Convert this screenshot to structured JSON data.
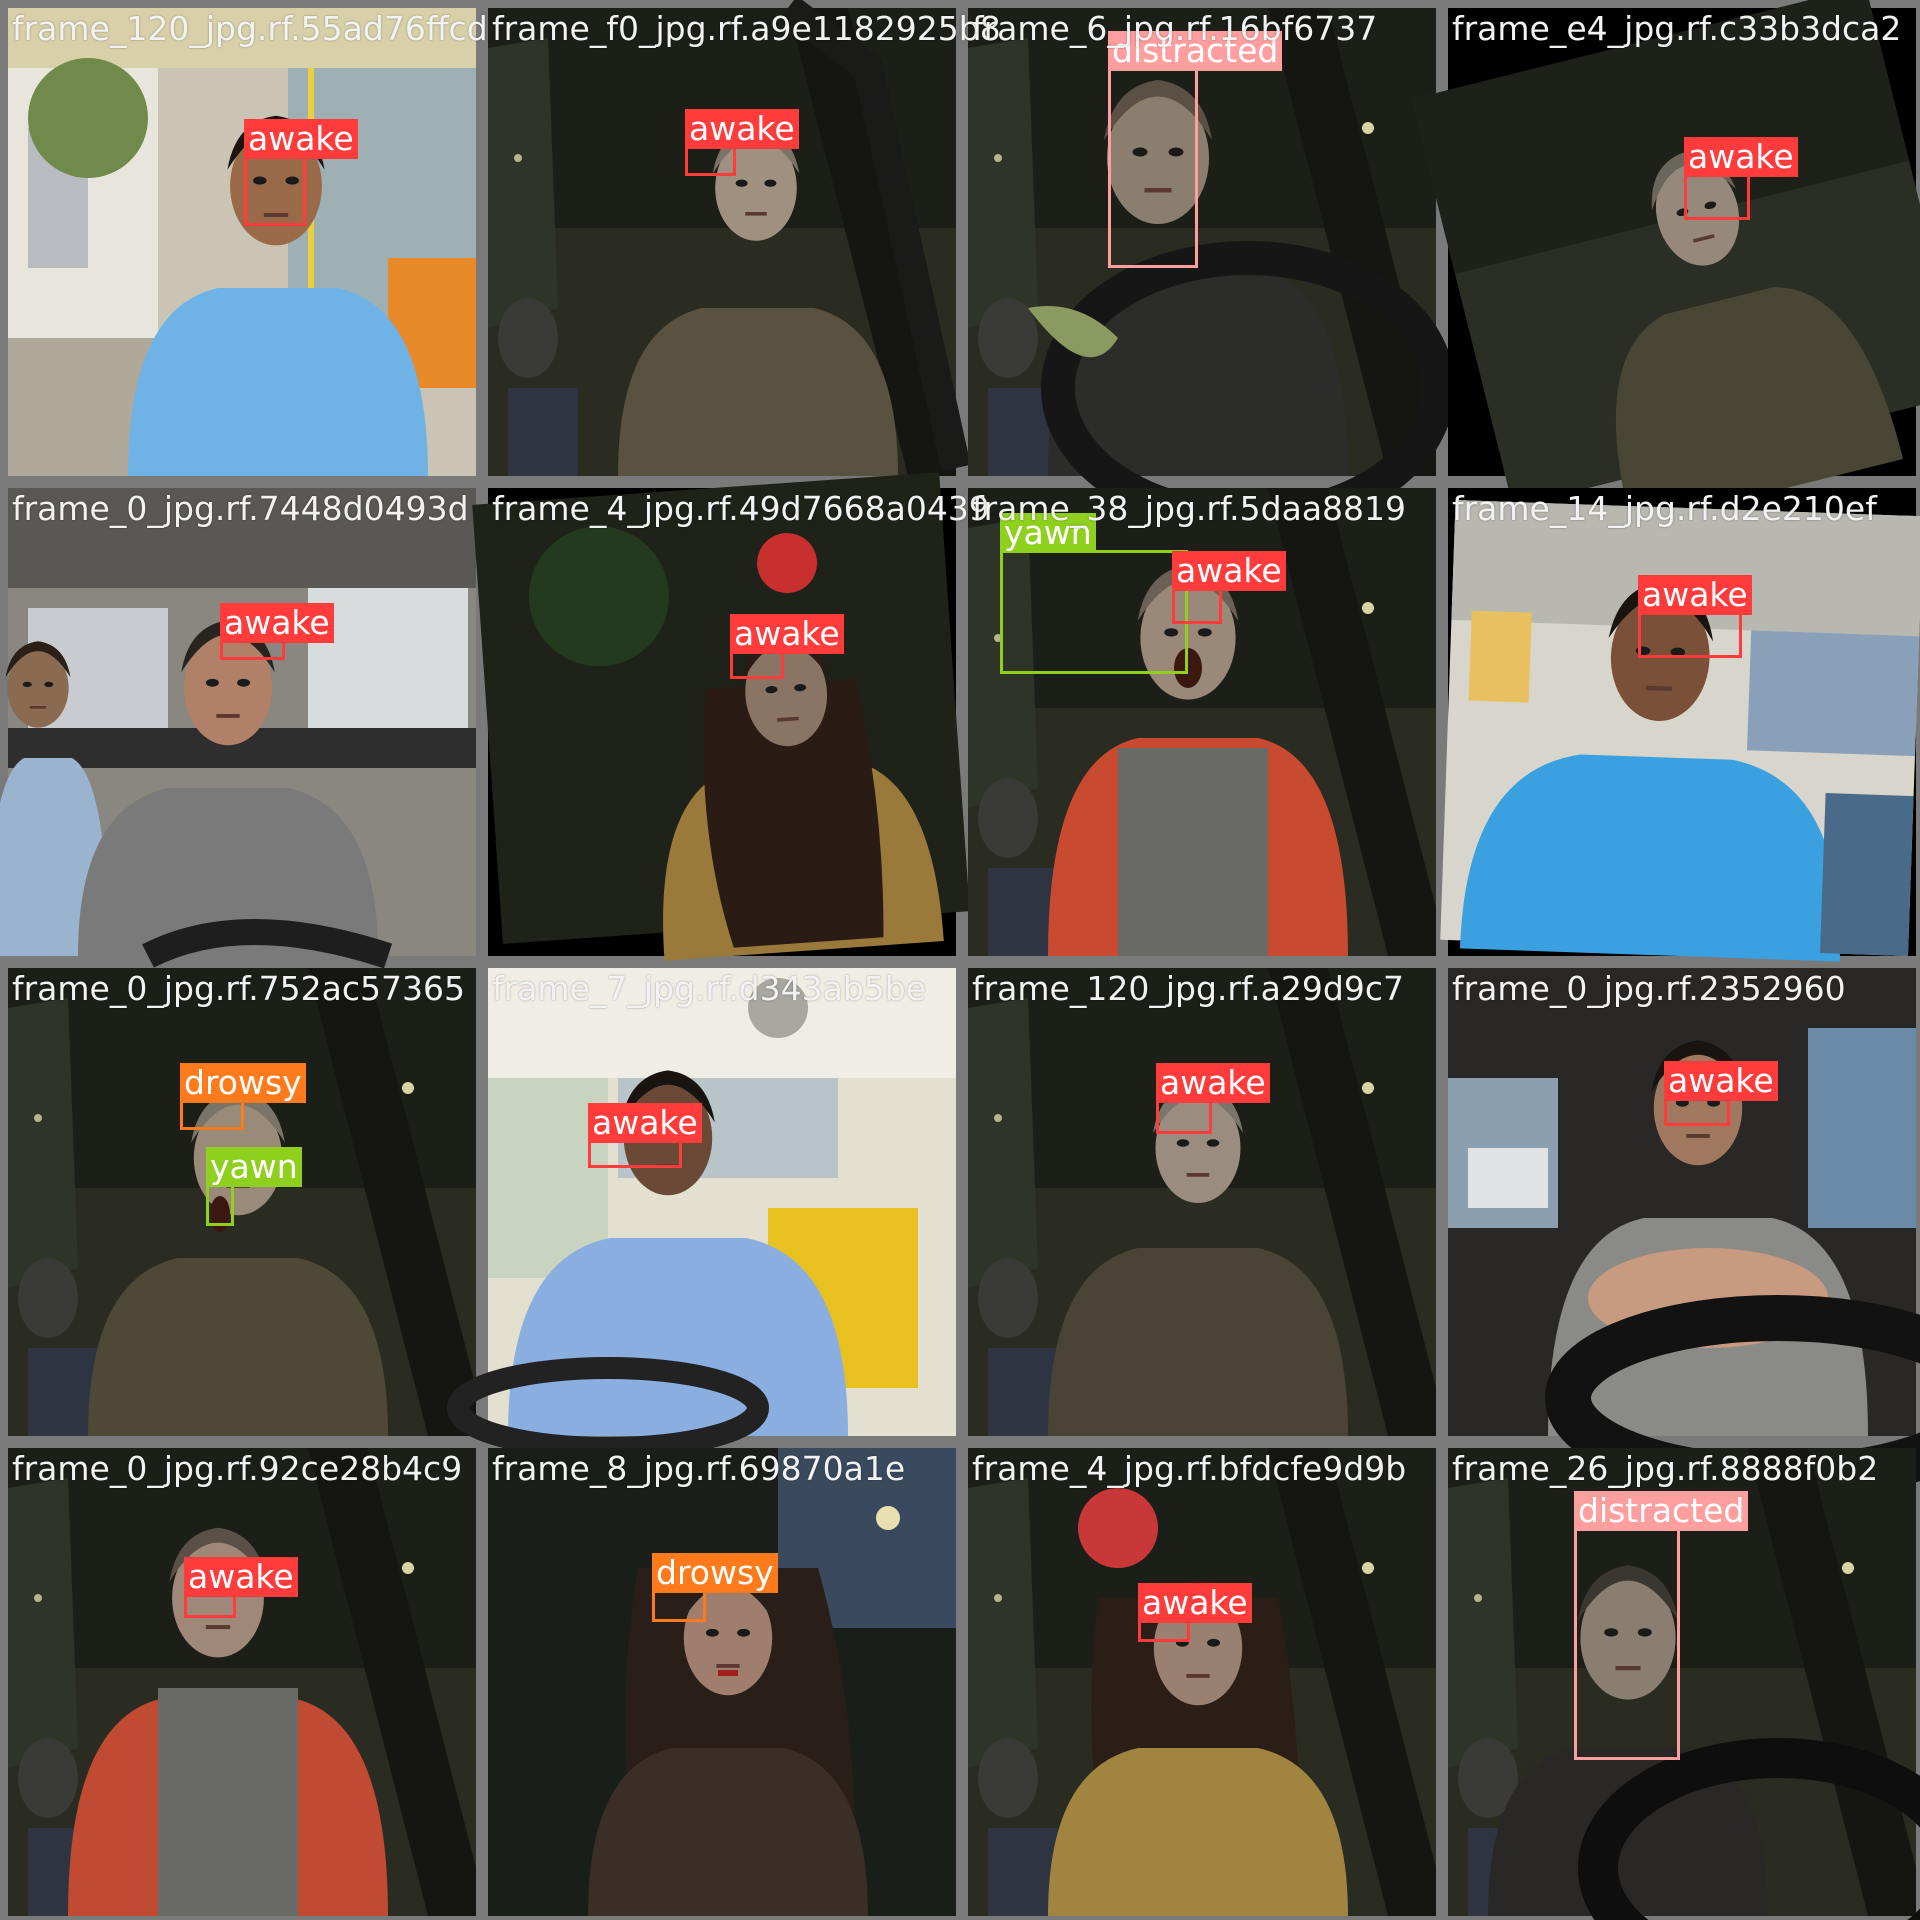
{
  "tiles": [
    {
      "filename": "frame_120_jpg.rf.55ad76ffcd",
      "scene": "bus-day",
      "detections": [
        {
          "label": "awake"
        }
      ]
    },
    {
      "filename": "frame_f0_jpg.rf.a9e1182925b8",
      "scene": "car-night-man",
      "detections": [
        {
          "label": "awake"
        }
      ]
    },
    {
      "filename": "frame_6_jpg.rf.16bf6737",
      "scene": "car-night-wheel",
      "detections": [
        {
          "label": "distracted"
        }
      ]
    },
    {
      "filename": "frame_e4_jpg.rf.c33b3dca2",
      "scene": "car-night-rot",
      "detections": [
        {
          "label": "awake"
        }
      ]
    },
    {
      "filename": "frame_0_jpg.rf.7448d0493d",
      "scene": "car-day",
      "detections": [
        {
          "label": "awake"
        }
      ]
    },
    {
      "filename": "frame_4_jpg.rf.49d7668a0439",
      "scene": "car-night-woman-rot",
      "detections": [
        {
          "label": "awake"
        }
      ]
    },
    {
      "filename": "frame_38_jpg.rf.5daa8819",
      "scene": "car-night-yawn",
      "detections": [
        {
          "label": "yawn"
        },
        {
          "label": "awake"
        }
      ]
    },
    {
      "filename": "frame_14_jpg.rf.d2e210ef",
      "scene": "bus-day-2",
      "detections": [
        {
          "label": "awake"
        }
      ]
    },
    {
      "filename": "frame_0_jpg.rf.752ac57365",
      "scene": "car-night-man-2",
      "detections": [
        {
          "label": "drowsy"
        },
        {
          "label": "yawn"
        }
      ]
    },
    {
      "filename": "frame_7_jpg.rf.d343ab5be",
      "scene": "bus-day-3",
      "detections": [
        {
          "label": "awake"
        }
      ]
    },
    {
      "filename": "frame_120_jpg.rf.a29d9c7",
      "scene": "car-night-man-3",
      "detections": [
        {
          "label": "awake"
        }
      ]
    },
    {
      "filename": "frame_0_jpg.rf.2352960",
      "scene": "car-day-2",
      "detections": [
        {
          "label": "awake"
        }
      ]
    },
    {
      "filename": "frame_0_jpg.rf.92ce28b4c9",
      "scene": "car-night-man-4",
      "detections": [
        {
          "label": "awake"
        }
      ]
    },
    {
      "filename": "frame_8_jpg.rf.69870a1e",
      "scene": "car-night-woman",
      "detections": [
        {
          "label": "drowsy"
        }
      ]
    },
    {
      "filename": "frame_4_jpg.rf.bfdcfe9d9b",
      "scene": "car-night-woman-2",
      "detections": [
        {
          "label": "awake"
        }
      ]
    },
    {
      "filename": "frame_26_jpg.rf.8888f0b2",
      "scene": "car-night-wheel-2",
      "detections": [
        {
          "label": "distracted"
        }
      ]
    }
  ],
  "colors": {
    "awake": "#ff3b3b",
    "distracted": "#ff9e9e",
    "yawn": "#8fcf1e",
    "drowsy": "#ff7a1a"
  }
}
